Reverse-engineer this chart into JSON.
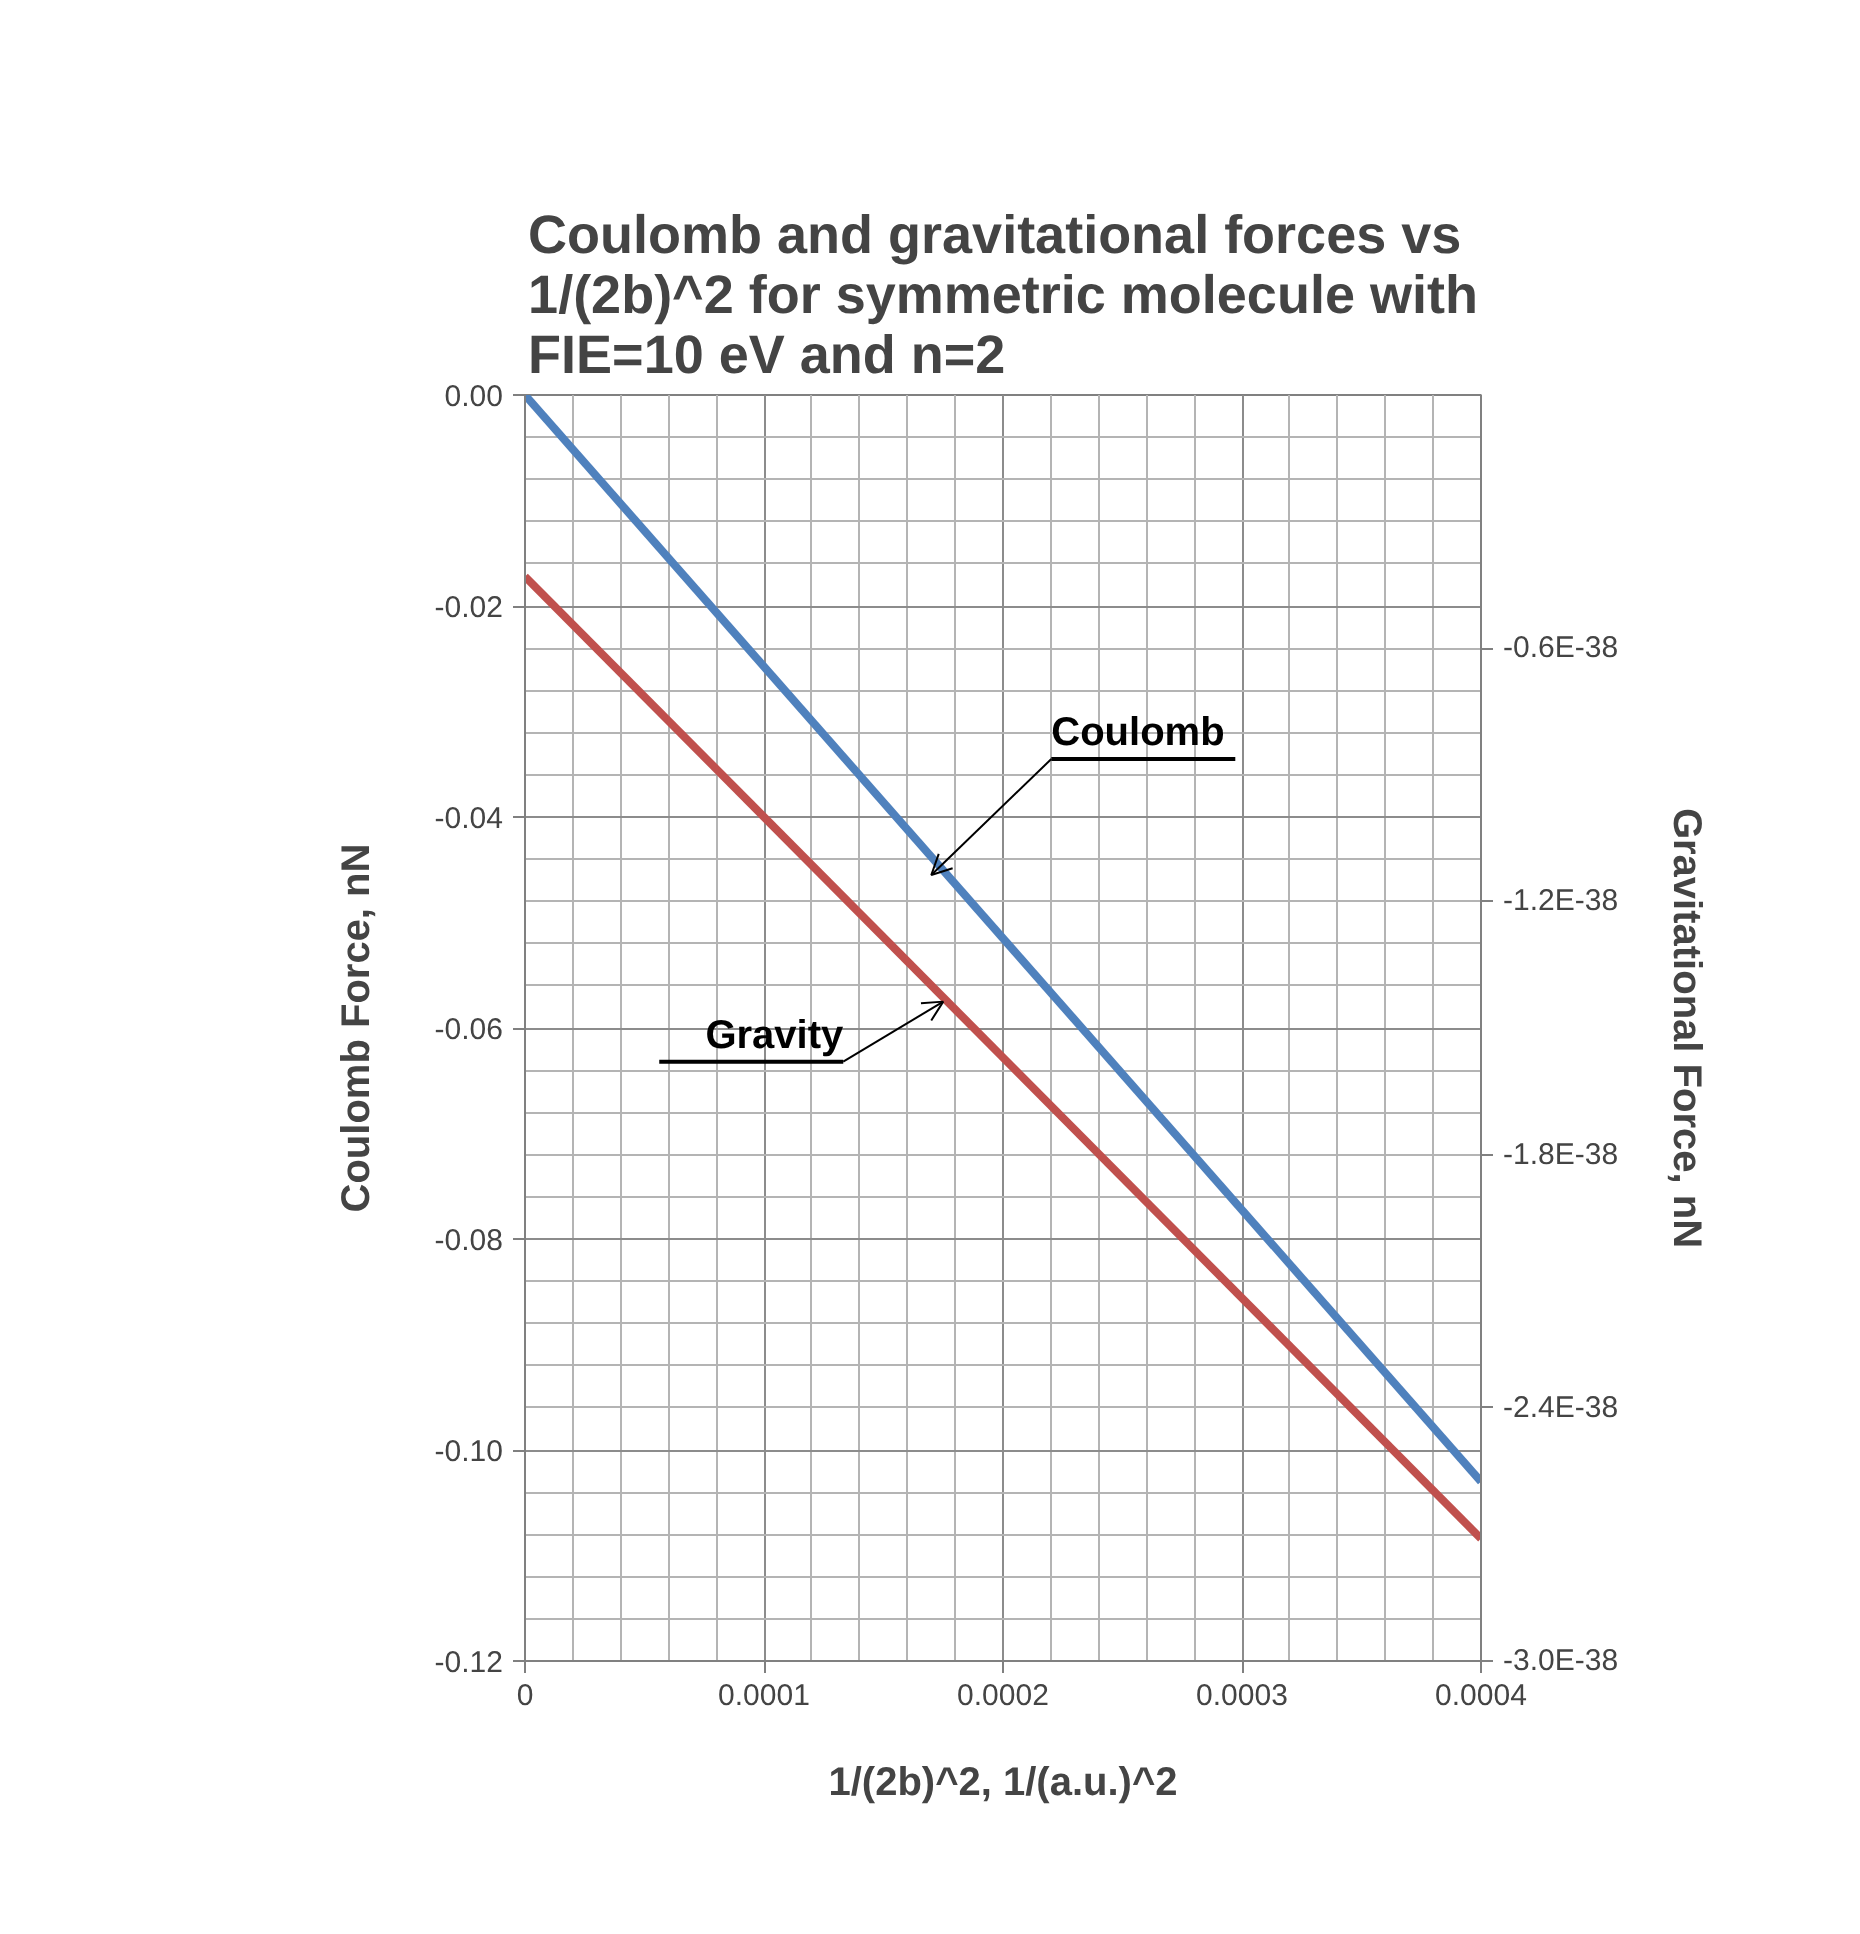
{
  "chart_data": {
    "type": "line",
    "title": "Coulomb and gravitational forces vs 1/(2b)^2 for symmetric molecule with FIE=10 eV and n=2",
    "xlabel": "1/(2b)^2, 1/(a.u.)^2",
    "ylabel": "Coulomb Force, nN",
    "y2label": "Gravitational Force, nN",
    "x": [
      0,
      0.0004
    ],
    "series": [
      {
        "color": "#4f81bd",
        "values": [
          0,
          -0.103
        ]
      },
      {
        "color": "#c0504d",
        "values": [
          -4.3e-39,
          -2.71e-38
        ],
        "axis": "y2"
      }
    ],
    "xlim": [
      0,
      0.0004
    ],
    "xticks": [
      0,
      0.0001,
      0.0002,
      0.0003,
      0.0004
    ],
    "ylim": [
      -0.12,
      0
    ],
    "yticks": [
      {
        "value": 0,
        "label": "0.00"
      },
      {
        "value": -0.02,
        "label": "-0.02"
      },
      {
        "value": -0.04,
        "label": "-0.04"
      },
      {
        "value": -0.06,
        "label": "-0.06"
      },
      {
        "value": -0.08,
        "label": "-0.08"
      },
      {
        "value": -0.1,
        "label": "-0.10"
      },
      {
        "value": -0.12,
        "label": "-0.12"
      }
    ],
    "y2lim": [
      -3e-38,
      0
    ],
    "y2ticks": [
      {
        "value": -6e-39,
        "label": "-0.6E-38"
      },
      {
        "value": -1.2e-38,
        "label": "-1.2E-38"
      },
      {
        "value": -1.8e-38,
        "label": "-1.8E-38"
      },
      {
        "value": -2.4e-38,
        "label": "-2.4E-38"
      },
      {
        "value": -3e-38,
        "label": "-3.0E-38"
      }
    ],
    "annotations": [
      {
        "text": "Coulomb",
        "x": 0.00017,
        "y": -0.0455
      },
      {
        "text": "Gravity",
        "x": 0.000175,
        "y": -0.0575
      }
    ],
    "grid": true,
    "marker": "none",
    "line_style": "solid"
  }
}
